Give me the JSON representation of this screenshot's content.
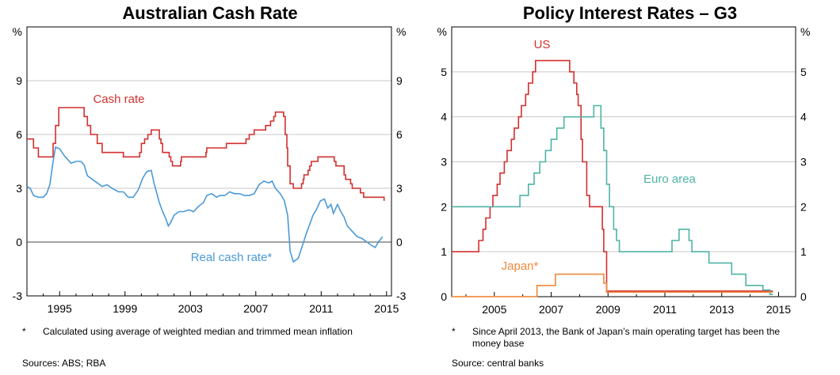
{
  "chart_data": [
    {
      "type": "line",
      "title": "Australian Cash Rate",
      "yunit": "%",
      "ylim": [
        -3,
        12
      ],
      "yticks": [
        -3,
        0,
        3,
        6,
        9
      ],
      "xlim": [
        1993.0,
        2015.3
      ],
      "xticks": [
        1995,
        1999,
        2003,
        2007,
        2011,
        2015
      ],
      "grid": true,
      "footnote_marker": "*",
      "footnote": "Calculated using average of weighted median and trimmed mean inflation",
      "sources": "Sources:   ABS; RBA",
      "series": [
        {
          "name": "Cash rate",
          "color": "#d32f2f",
          "step": true,
          "points": [
            [
              1993.0,
              5.75
            ],
            [
              1993.4,
              5.25
            ],
            [
              1993.7,
              4.75
            ],
            [
              1994.6,
              5.5
            ],
            [
              1994.75,
              6.5
            ],
            [
              1994.95,
              7.5
            ],
            [
              1996.5,
              7.0
            ],
            [
              1996.7,
              6.5
            ],
            [
              1996.9,
              6.0
            ],
            [
              1997.3,
              5.5
            ],
            [
              1997.6,
              5.0
            ],
            [
              1998.9,
              4.75
            ],
            [
              1999.9,
              5.0
            ],
            [
              2000.0,
              5.5
            ],
            [
              2000.2,
              5.75
            ],
            [
              2000.4,
              6.0
            ],
            [
              2000.6,
              6.25
            ],
            [
              2001.1,
              5.75
            ],
            [
              2001.2,
              5.5
            ],
            [
              2001.3,
              5.0
            ],
            [
              2001.7,
              4.75
            ],
            [
              2001.8,
              4.5
            ],
            [
              2001.9,
              4.25
            ],
            [
              2002.4,
              4.5
            ],
            [
              2002.45,
              4.75
            ],
            [
              2003.95,
              5.0
            ],
            [
              2004.0,
              5.25
            ],
            [
              2005.2,
              5.5
            ],
            [
              2006.4,
              5.75
            ],
            [
              2006.6,
              6.0
            ],
            [
              2006.9,
              6.25
            ],
            [
              2007.6,
              6.5
            ],
            [
              2007.9,
              6.75
            ],
            [
              2008.1,
              7.0
            ],
            [
              2008.2,
              7.25
            ],
            [
              2008.7,
              7.0
            ],
            [
              2008.8,
              6.0
            ],
            [
              2008.9,
              5.25
            ],
            [
              2008.95,
              4.25
            ],
            [
              2009.1,
              3.25
            ],
            [
              2009.3,
              3.0
            ],
            [
              2009.8,
              3.25
            ],
            [
              2009.9,
              3.5
            ],
            [
              2009.95,
              3.75
            ],
            [
              2010.2,
              4.0
            ],
            [
              2010.3,
              4.25
            ],
            [
              2010.4,
              4.5
            ],
            [
              2010.8,
              4.75
            ],
            [
              2011.8,
              4.5
            ],
            [
              2011.9,
              4.25
            ],
            [
              2012.4,
              3.75
            ],
            [
              2012.5,
              3.5
            ],
            [
              2012.8,
              3.25
            ],
            [
              2012.9,
              3.0
            ],
            [
              2013.4,
              2.75
            ],
            [
              2013.6,
              2.5
            ],
            [
              2014.8,
              2.5
            ],
            [
              2014.85,
              2.3
            ]
          ]
        },
        {
          "name": "Real cash rate*",
          "color": "#4a9ad9",
          "step": false,
          "points": [
            [
              1993.0,
              3.1
            ],
            [
              1993.2,
              3.0
            ],
            [
              1993.4,
              2.6
            ],
            [
              1993.7,
              2.5
            ],
            [
              1994.0,
              2.5
            ],
            [
              1994.2,
              2.7
            ],
            [
              1994.4,
              3.2
            ],
            [
              1994.6,
              4.5
            ],
            [
              1994.75,
              5.3
            ],
            [
              1995.0,
              5.2
            ],
            [
              1995.3,
              4.8
            ],
            [
              1995.7,
              4.4
            ],
            [
              1996.0,
              4.5
            ],
            [
              1996.3,
              4.5
            ],
            [
              1996.5,
              4.3
            ],
            [
              1996.7,
              3.7
            ],
            [
              1997.0,
              3.5
            ],
            [
              1997.3,
              3.3
            ],
            [
              1997.6,
              3.1
            ],
            [
              1997.9,
              3.2
            ],
            [
              1998.2,
              3.0
            ],
            [
              1998.6,
              2.8
            ],
            [
              1998.9,
              2.8
            ],
            [
              1999.2,
              2.5
            ],
            [
              1999.5,
              2.5
            ],
            [
              1999.8,
              2.9
            ],
            [
              2000.1,
              3.6
            ],
            [
              2000.35,
              3.95
            ],
            [
              2000.6,
              4.0
            ],
            [
              2000.8,
              3.2
            ],
            [
              2001.1,
              2.2
            ],
            [
              2001.3,
              1.7
            ],
            [
              2001.5,
              1.3
            ],
            [
              2001.65,
              0.9
            ],
            [
              2001.8,
              1.1
            ],
            [
              2002.0,
              1.5
            ],
            [
              2002.3,
              1.7
            ],
            [
              2002.6,
              1.7
            ],
            [
              2002.9,
              1.8
            ],
            [
              2003.2,
              1.7
            ],
            [
              2003.5,
              2.0
            ],
            [
              2003.8,
              2.2
            ],
            [
              2004.0,
              2.6
            ],
            [
              2004.3,
              2.7
            ],
            [
              2004.6,
              2.5
            ],
            [
              2004.8,
              2.6
            ],
            [
              2005.1,
              2.6
            ],
            [
              2005.4,
              2.8
            ],
            [
              2005.7,
              2.7
            ],
            [
              2006.0,
              2.7
            ],
            [
              2006.3,
              2.6
            ],
            [
              2006.6,
              2.6
            ],
            [
              2006.9,
              2.7
            ],
            [
              2007.2,
              3.2
            ],
            [
              2007.5,
              3.4
            ],
            [
              2007.8,
              3.3
            ],
            [
              2008.0,
              3.4
            ],
            [
              2008.2,
              3.0
            ],
            [
              2008.5,
              2.7
            ],
            [
              2008.75,
              2.3
            ],
            [
              2008.95,
              1.5
            ],
            [
              2009.1,
              -0.5
            ],
            [
              2009.3,
              -1.1
            ],
            [
              2009.6,
              -0.9
            ],
            [
              2009.85,
              -0.2
            ],
            [
              2010.1,
              0.5
            ],
            [
              2010.3,
              1.0
            ],
            [
              2010.5,
              1.5
            ],
            [
              2010.7,
              1.8
            ],
            [
              2010.95,
              2.3
            ],
            [
              2011.2,
              2.4
            ],
            [
              2011.4,
              1.9
            ],
            [
              2011.6,
              2.1
            ],
            [
              2011.75,
              1.6
            ],
            [
              2012.0,
              2.1
            ],
            [
              2012.2,
              1.7
            ],
            [
              2012.4,
              1.4
            ],
            [
              2012.6,
              0.9
            ],
            [
              2012.9,
              0.6
            ],
            [
              2013.2,
              0.3
            ],
            [
              2013.5,
              0.2
            ],
            [
              2013.8,
              0.0
            ],
            [
              2014.1,
              -0.2
            ],
            [
              2014.3,
              -0.3
            ],
            [
              2014.5,
              0.0
            ],
            [
              2014.75,
              0.3
            ]
          ]
        }
      ],
      "labels": [
        {
          "text": "Cash rate",
          "series": 0
        },
        {
          "text": "Real cash rate*",
          "series": 1
        }
      ]
    },
    {
      "type": "line",
      "title": "Policy Interest Rates – G3",
      "yunit": "%",
      "ylim": [
        0,
        6
      ],
      "yticks": [
        0,
        1,
        2,
        3,
        4,
        5
      ],
      "xlim": [
        2003.5,
        2015.6
      ],
      "xticks": [
        2005,
        2007,
        2009,
        2011,
        2013,
        2015
      ],
      "grid": true,
      "footnote_marker": "*",
      "footnote": "Since April 2013, the Bank of Japan’s main operating target has been the money base",
      "sources": "Source:     central banks",
      "series": [
        {
          "name": "US",
          "color": "#d32f2f",
          "step": true,
          "points": [
            [
              2003.5,
              1.0
            ],
            [
              2004.45,
              1.25
            ],
            [
              2004.6,
              1.5
            ],
            [
              2004.7,
              1.75
            ],
            [
              2004.85,
              2.0
            ],
            [
              2004.95,
              2.25
            ],
            [
              2005.1,
              2.5
            ],
            [
              2005.2,
              2.75
            ],
            [
              2005.35,
              3.0
            ],
            [
              2005.45,
              3.25
            ],
            [
              2005.6,
              3.5
            ],
            [
              2005.7,
              3.75
            ],
            [
              2005.85,
              4.0
            ],
            [
              2005.95,
              4.25
            ],
            [
              2006.1,
              4.5
            ],
            [
              2006.2,
              4.75
            ],
            [
              2006.35,
              5.0
            ],
            [
              2006.45,
              5.25
            ],
            [
              2007.65,
              5.0
            ],
            [
              2007.8,
              4.75
            ],
            [
              2007.9,
              4.5
            ],
            [
              2007.95,
              4.25
            ],
            [
              2008.05,
              3.5
            ],
            [
              2008.1,
              3.0
            ],
            [
              2008.25,
              2.25
            ],
            [
              2008.35,
              2.0
            ],
            [
              2008.8,
              1.5
            ],
            [
              2008.85,
              1.0
            ],
            [
              2008.95,
              0.125
            ],
            [
              2014.8,
              0.125
            ]
          ]
        },
        {
          "name": "Euro area",
          "color": "#4fb3a6",
          "step": true,
          "points": [
            [
              2003.5,
              2.0
            ],
            [
              2005.9,
              2.25
            ],
            [
              2006.2,
              2.5
            ],
            [
              2006.4,
              2.75
            ],
            [
              2006.6,
              3.0
            ],
            [
              2006.8,
              3.25
            ],
            [
              2007.0,
              3.5
            ],
            [
              2007.2,
              3.75
            ],
            [
              2007.45,
              4.0
            ],
            [
              2008.5,
              4.25
            ],
            [
              2008.75,
              3.75
            ],
            [
              2008.85,
              3.25
            ],
            [
              2008.95,
              2.5
            ],
            [
              2009.05,
              2.0
            ],
            [
              2009.2,
              1.5
            ],
            [
              2009.3,
              1.25
            ],
            [
              2009.4,
              1.0
            ],
            [
              2011.25,
              1.25
            ],
            [
              2011.5,
              1.5
            ],
            [
              2011.85,
              1.25
            ],
            [
              2011.95,
              1.0
            ],
            [
              2012.55,
              0.75
            ],
            [
              2013.35,
              0.5
            ],
            [
              2013.85,
              0.25
            ],
            [
              2014.45,
              0.15
            ],
            [
              2014.7,
              0.05
            ],
            [
              2014.8,
              0.05
            ]
          ]
        },
        {
          "name": "Japan*",
          "color": "#f0893c",
          "step": true,
          "points": [
            [
              2003.5,
              0.001
            ],
            [
              2006.5,
              0.25
            ],
            [
              2007.15,
              0.5
            ],
            [
              2008.85,
              0.3
            ],
            [
              2008.95,
              0.1
            ],
            [
              2014.8,
              0.1
            ]
          ]
        }
      ],
      "labels": [
        {
          "text": "US",
          "series": 0
        },
        {
          "text": "Euro area",
          "series": 1
        },
        {
          "text": "Japan*",
          "series": 2
        }
      ]
    }
  ]
}
